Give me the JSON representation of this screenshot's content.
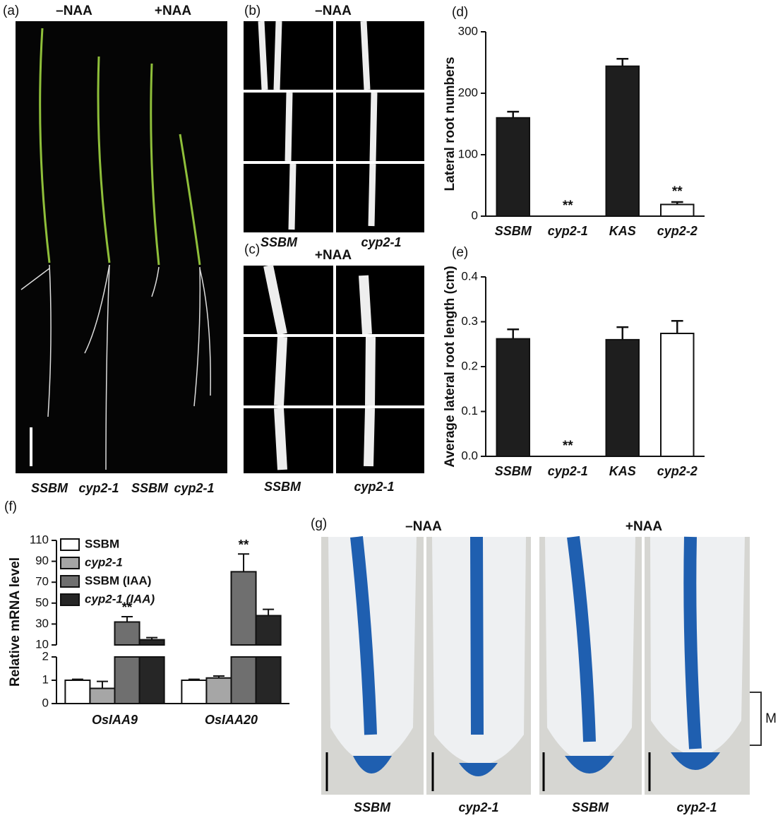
{
  "figure": {
    "a": {
      "label": "(a)",
      "conditions": [
        "–NAA",
        "+NAA"
      ],
      "genotypes": [
        "SSBM",
        "cyp2-1",
        "SSBM",
        "cyp2-1"
      ]
    },
    "b": {
      "label": "(b)",
      "condition": "–NAA",
      "genotypes": [
        "SSBM",
        "cyp2-1"
      ]
    },
    "c": {
      "label": "(c)",
      "condition": "+NAA",
      "genotypes": [
        "SSBM",
        "cyp2-1"
      ]
    },
    "g": {
      "label": "(g)",
      "conditions": [
        "–NAA",
        "+NAA"
      ],
      "genotypes": [
        "SSBM",
        "cyp2-1",
        "SSBM",
        "cyp2-1"
      ],
      "zone": "M"
    }
  },
  "chart_data": [
    {
      "type": "bar",
      "label": "(d)",
      "y_label": "Lateral root numbers",
      "categories": [
        "SSBM",
        "cyp2-1",
        "KAS",
        "cyp2-2"
      ],
      "values": [
        160,
        0,
        244,
        19
      ],
      "errors": [
        10,
        0,
        12,
        4
      ],
      "colors": [
        "#1e1e1e",
        "#1e1e1e",
        "#1e1e1e",
        "#ffffff"
      ],
      "significance": [
        null,
        "**",
        null,
        "**"
      ],
      "ylim": [
        0,
        300
      ],
      "yticks": [
        0,
        100,
        200,
        300
      ]
    },
    {
      "type": "bar",
      "label": "(e)",
      "y_label": "Average lateral root length (cm)",
      "categories": [
        "SSBM",
        "cyp2-1",
        "KAS",
        "cyp2-2"
      ],
      "values": [
        0.262,
        0,
        0.26,
        0.274
      ],
      "errors": [
        0.021,
        0,
        0.028,
        0.028
      ],
      "colors": [
        "#1e1e1e",
        "#1e1e1e",
        "#1e1e1e",
        "#ffffff"
      ],
      "significance": [
        null,
        "**",
        null,
        null
      ],
      "ylim": [
        0,
        0.4
      ],
      "yticks": [
        {
          "value": 0,
          "label": "0.0"
        },
        0.1,
        0.2,
        0.3,
        0.4
      ]
    },
    {
      "type": "bar",
      "label": "(f)",
      "y_label": "Relative mRNA level",
      "categories": [
        "OsIAA9",
        "OsIAA20"
      ],
      "series": [
        {
          "name": "SSBM",
          "color": "#ffffff",
          "values": [
            1.0,
            1.0
          ],
          "errors": [
            0.04,
            0.04
          ]
        },
        {
          "name": "cyp2-1",
          "color": "#a6a6a6",
          "values": [
            0.65,
            1.1
          ],
          "errors": [
            0.3,
            0.08
          ]
        },
        {
          "name": "SSBM (IAA)",
          "color": "#6f6f6f",
          "values": [
            32,
            80
          ],
          "errors": [
            5,
            17
          ]
        },
        {
          "name": "cyp2-1 (IAA)",
          "color": "#262626",
          "values": [
            15,
            38
          ],
          "errors": [
            2,
            6
          ]
        }
      ],
      "significance": [
        "**",
        "**"
      ],
      "ylim_lower": [
        0,
        2
      ],
      "yticks_lower": [
        0,
        1,
        2
      ],
      "ylim_upper": [
        10,
        110
      ],
      "yticks_upper": [
        10,
        30,
        50,
        70,
        90,
        110
      ]
    }
  ]
}
